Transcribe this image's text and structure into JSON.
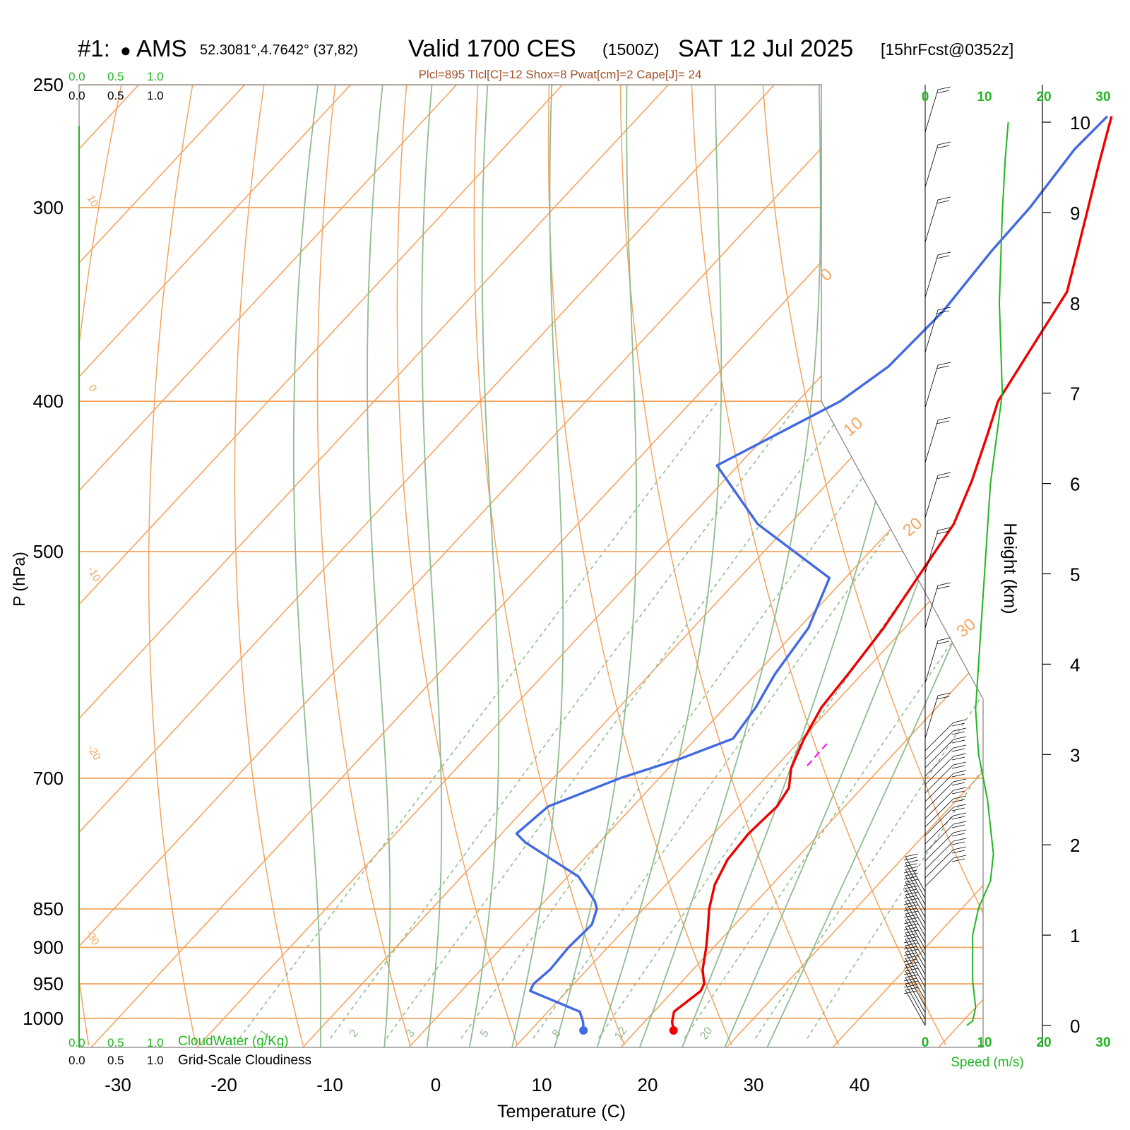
{
  "header": {
    "station_id": "#1:",
    "station_marker": "●",
    "station_name": "AMS",
    "coords": "52.3081°,4.7642° (37,82)",
    "valid": "Valid 1700 CES",
    "zulu": "(1500Z)",
    "date": "SAT 12 Jul 2025",
    "forecast": "[15hrFcst@0352z]",
    "indices": "Plcl=895 Tlcl[C]=12 Shox=8 Pwat[cm]=2 Cape[J]= 24"
  },
  "colors": {
    "temperature": "#ee0000",
    "dewpoint": "#4169e1",
    "isotherm": "#f4a460",
    "dry_adiabat": "#f4a460",
    "moist_adiabat": "#8fbc8f",
    "mixing_ratio": "#8fbc8f",
    "parcel": "#ff00ff",
    "wind_speed": "#22b522",
    "green_text": "#22b522",
    "indices_text": "#a0522d",
    "frame": "#808080"
  },
  "cloud_scales": {
    "top_green": [
      "0.0",
      "0.5",
      "1.0"
    ],
    "top_black": [
      "0.0",
      "0.5",
      "1.0"
    ],
    "bottom_green": [
      "0.0",
      "0.5",
      "1.0"
    ],
    "bottom_green_label": "CloudWater (g/Kg)",
    "bottom_black": [
      "0.0",
      "0.5",
      "1.0"
    ],
    "bottom_black_label": "Grid-Scale Cloudiness"
  },
  "chart_data": {
    "type": "line",
    "subtype": "skew-T log-P sounding",
    "xlabel": "Temperature (C)",
    "ylabel": "P (hPa)",
    "y2label": "Height (km)",
    "x_ticks": [
      -30,
      -20,
      -10,
      0,
      10,
      20,
      30,
      40
    ],
    "p_ticks": [
      250,
      300,
      400,
      500,
      700,
      850,
      900,
      950,
      1000
    ],
    "height_ticks": [
      0,
      1,
      2,
      3,
      4,
      5,
      6,
      7,
      8,
      9,
      10
    ],
    "isotherm_labels": [
      "0",
      "10",
      "20",
      "30",
      "10",
      "0",
      "-10",
      "-20",
      "-30"
    ],
    "mixing_ratio_labels": [
      "1",
      "2",
      "3",
      "5",
      "8",
      "12",
      "20"
    ],
    "wind_speed_ticks": [
      "0",
      "10",
      "20",
      "30"
    ],
    "wind_speed_label": "Speed (m/s)",
    "series": [
      {
        "name": "Temperature",
        "points": [
          [
            1018,
            23.5
          ],
          [
            1005,
            22.6
          ],
          [
            990,
            21.9
          ],
          [
            960,
            22.6
          ],
          [
            950,
            22.3
          ],
          [
            930,
            20.9
          ],
          [
            900,
            19.3
          ],
          [
            875,
            17.8
          ],
          [
            850,
            16.2
          ],
          [
            820,
            14.6
          ],
          [
            790,
            13.6
          ],
          [
            760,
            13.3
          ],
          [
            730,
            13.6
          ],
          [
            710,
            13.1
          ],
          [
            690,
            11.6
          ],
          [
            660,
            10.2
          ],
          [
            630,
            9.1
          ],
          [
            600,
            8.7
          ],
          [
            560,
            8.0
          ],
          [
            520,
            6.8
          ],
          [
            480,
            5.5
          ],
          [
            450,
            3.4
          ],
          [
            420,
            0.8
          ],
          [
            400,
            -1.1
          ],
          [
            370,
            -2.6
          ],
          [
            340,
            -4.2
          ],
          [
            320,
            -6.8
          ],
          [
            300,
            -9.6
          ],
          [
            280,
            -12.6
          ],
          [
            262,
            -15.4
          ]
        ]
      },
      {
        "name": "Dewpoint",
        "points": [
          [
            1018,
            15.0
          ],
          [
            1005,
            14.2
          ],
          [
            990,
            13.0
          ],
          [
            960,
            6.5
          ],
          [
            950,
            6.2
          ],
          [
            930,
            6.5
          ],
          [
            900,
            6.3
          ],
          [
            870,
            6.5
          ],
          [
            850,
            5.6
          ],
          [
            840,
            4.7
          ],
          [
            810,
            1.0
          ],
          [
            770,
            -7.0
          ],
          [
            760,
            -8.6
          ],
          [
            730,
            -8.0
          ],
          [
            700,
            -3.7
          ],
          [
            680,
            0.3
          ],
          [
            660,
            3.5
          ],
          [
            630,
            2.9
          ],
          [
            600,
            1.8
          ],
          [
            560,
            0.9
          ],
          [
            520,
            -1.5
          ],
          [
            480,
            -13.0
          ],
          [
            440,
            -22.0
          ],
          [
            400,
            -16.0
          ],
          [
            380,
            -14.5
          ],
          [
            350,
            -14.2
          ],
          [
            320,
            -14.9
          ],
          [
            300,
            -15.1
          ],
          [
            275,
            -16.0
          ],
          [
            262,
            -15.8
          ]
        ]
      }
    ],
    "parcel": [
      [
        665,
        12.8
      ],
      [
        690,
        12.9
      ]
    ],
    "wind_speed_profile": [
      [
        0,
        7
      ],
      [
        0.05,
        8
      ],
      [
        0.2,
        8.5
      ],
      [
        0.5,
        8
      ],
      [
        1,
        8
      ],
      [
        1.3,
        9
      ],
      [
        1.6,
        11
      ],
      [
        1.9,
        11.5
      ],
      [
        2.5,
        10.5
      ],
      [
        3,
        9
      ],
      [
        3.5,
        8.5
      ],
      [
        4,
        9
      ],
      [
        4.5,
        9.5
      ],
      [
        5,
        10
      ],
      [
        5.5,
        10.5
      ],
      [
        6,
        11
      ],
      [
        7,
        13
      ],
      [
        8,
        12.5
      ],
      [
        9,
        13
      ],
      [
        9.6,
        13.5
      ],
      [
        10,
        14
      ]
    ]
  }
}
